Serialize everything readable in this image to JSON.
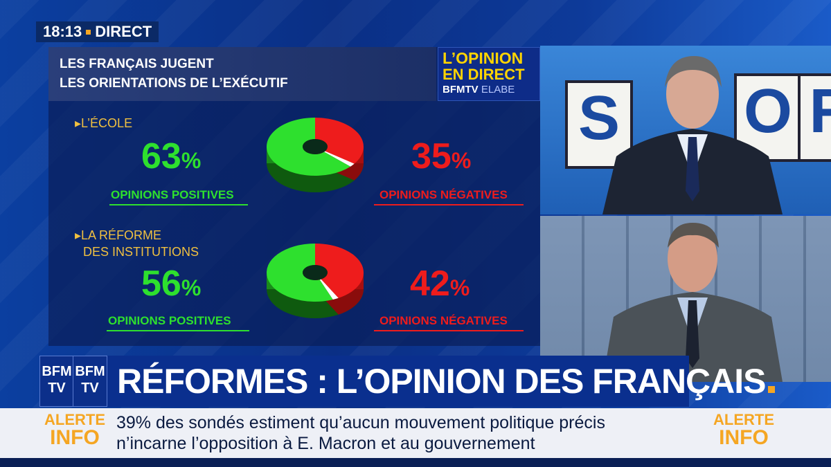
{
  "clock": {
    "time": "18:13",
    "label": "DIRECT"
  },
  "panel": {
    "title_line1": "LES FRANÇAIS JUGENT",
    "title_line2": "LES ORIENTATIONS DE L’EXÉCUTIF",
    "logo": {
      "line1": "L’OPINION",
      "line2": "EN DIRECT",
      "brand": "BFMTV",
      "partner": "ELABE"
    },
    "items": [
      {
        "label_line1": "▸L’ÉCOLE",
        "label_line2": "",
        "positive_value": 63,
        "positive_text": "63",
        "positive_unit": "%",
        "positive_label": "OPINIONS POSITIVES",
        "negative_value": 35,
        "negative_text": "35",
        "negative_unit": "%",
        "negative_label": "OPINIONS NÉGATIVES"
      },
      {
        "label_line1": "▸LA RÉFORME",
        "label_line2": "DES INSTITUTIONS",
        "positive_value": 56,
        "positive_text": "56",
        "positive_unit": "%",
        "positive_label": "OPINIONS POSITIVES",
        "negative_value": 42,
        "negative_text": "42",
        "negative_unit": "%",
        "negative_label": "OPINIONS NÉGATIVES"
      }
    ],
    "colors": {
      "positive": "#2ee02e",
      "negative": "#ee1c1c",
      "neutral": "#ffffff"
    }
  },
  "studio": {
    "board_letters": [
      "S",
      "O",
      "R"
    ]
  },
  "banner": {
    "logo_top": "BFM",
    "logo_bottom": "TV",
    "headline": "RÉFORMES : L’OPINION DES FRANÇAIS"
  },
  "ticker": {
    "alert_line1": "ALERTE",
    "alert_line2": "INFO",
    "text_line1": "39% des sondés estiment qu’aucun mouvement politique précis",
    "text_line2": "n’incarne l’opposition à E. Macron et au gouvernement"
  }
}
